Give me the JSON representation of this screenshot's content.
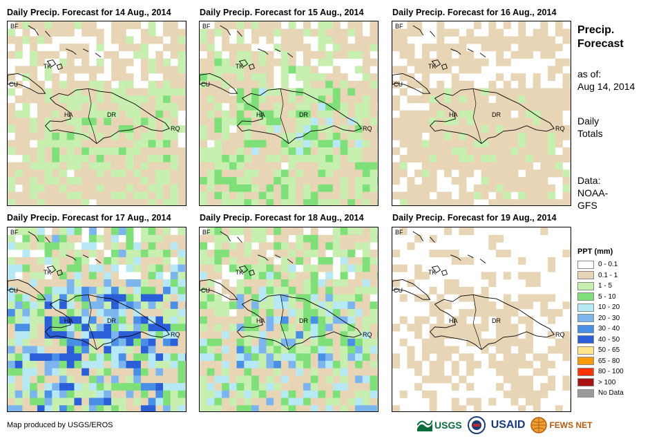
{
  "panels": [
    {
      "title": "Daily Precip. Forecast for 14 Aug., 2014",
      "rain_intensity": 0.7
    },
    {
      "title": "Daily Precip. Forecast for 15 Aug., 2014",
      "rain_intensity": 0.9
    },
    {
      "title": "Daily Precip. Forecast for 16 Aug., 2014",
      "rain_intensity": 0.5
    },
    {
      "title": "Daily Precip. Forecast for 17 Aug., 2014",
      "rain_intensity": 1.6
    },
    {
      "title": "Daily Precip. Forecast for 18 Aug., 2014",
      "rain_intensity": 1.2
    },
    {
      "title": "Daily Precip. Forecast for 19 Aug., 2014",
      "rain_intensity": 0.3
    }
  ],
  "map_labels": {
    "bf": "BF",
    "cu": "CU",
    "tk": "TK",
    "ha": "HA",
    "dr": "DR",
    "rq": "RQ"
  },
  "side": {
    "title_line1": "Precip.",
    "title_line2": "Forecast",
    "asof_label": "as of:",
    "asof_date": "Aug 14, 2014",
    "totals_line1": "Daily",
    "totals_line2": "Totals",
    "data_line1": "Data:",
    "data_line2": "NOAA-",
    "data_line3": "GFS"
  },
  "legend": {
    "title": "PPT (mm)",
    "items": [
      {
        "label": "0 - 0.1",
        "color": "#ffffff"
      },
      {
        "label": "0.1 - 1",
        "color": "#e8d5b5"
      },
      {
        "label": "1 - 5",
        "color": "#c6efb0"
      },
      {
        "label": "5 - 10",
        "color": "#7fe07a"
      },
      {
        "label": "10 - 20",
        "color": "#b7e9f5"
      },
      {
        "label": "20 - 30",
        "color": "#7cb5ee"
      },
      {
        "label": "30 - 40",
        "color": "#4a8fe6"
      },
      {
        "label": "40 - 50",
        "color": "#2a5fd8"
      },
      {
        "label": "50 - 65",
        "color": "#ffe58a"
      },
      {
        "label": "65 - 80",
        "color": "#ff9a00"
      },
      {
        "label": "80 - 100",
        "color": "#ff3300"
      },
      {
        "label": "> 100",
        "color": "#aa1111"
      },
      {
        "label": "No Data",
        "color": "#9a9a9a"
      }
    ]
  },
  "credit": "Map produced by USGS/EROS",
  "logos": {
    "usgs": "USGS",
    "usaid": "USAID",
    "fewsnet": "FEWS NET"
  }
}
